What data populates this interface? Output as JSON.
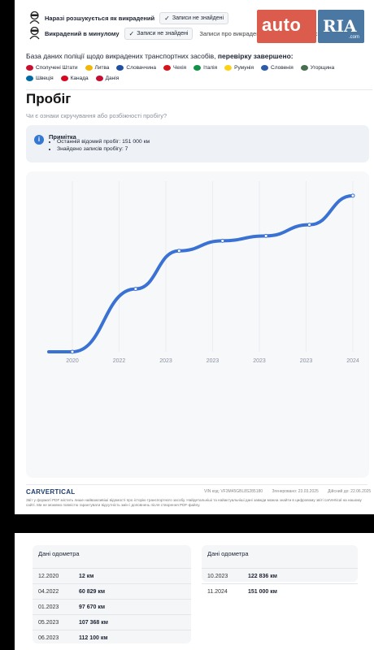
{
  "stolen": {
    "current": {
      "label": "Наразі розшукується як викрадений",
      "status": "Записи не знайдені"
    },
    "past": {
      "label": "Викрадений в минулому",
      "status": "Записи не знайдені",
      "extra": "Записи про викрадення транспортних засобів"
    }
  },
  "logo": {
    "auto": "auto",
    "ria": "RIA",
    "ria_com": ".com"
  },
  "database": {
    "title_prefix": "База даних поліції щодо викрадених транспортних засобів,",
    "title_bold": "перевірку завершено:",
    "countries": [
      {
        "name": "Сполучені Штати",
        "color": "#c8102e"
      },
      {
        "name": "Литва",
        "color": "#f2b705"
      },
      {
        "name": "Словаччина",
        "color": "#1e4fa0"
      },
      {
        "name": "Чехія",
        "color": "#d7141a"
      },
      {
        "name": "Італія",
        "color": "#119246"
      },
      {
        "name": "Румунія",
        "color": "#fcd116"
      },
      {
        "name": "Словенія",
        "color": "#2d5ba8"
      },
      {
        "name": "Угорщина",
        "color": "#477050"
      },
      {
        "name": "Швеція",
        "color": "#006aa7"
      },
      {
        "name": "Канада",
        "color": "#d80621"
      },
      {
        "name": "Данія",
        "color": "#c60c30"
      }
    ]
  },
  "mileage": {
    "title": "Пробіг",
    "subtitle": "Чи є ознаки скручування або розбіжності пробігу?",
    "note_title": "Примітка",
    "note_items": [
      "Останній відомий пробіг: 151 000 км",
      "Знайдено записів пробігу: 7"
    ]
  },
  "chart_data": {
    "type": "line",
    "x": [
      "2019",
      "2020",
      "2022",
      "2023",
      "2023",
      "2023",
      "2023",
      "2024"
    ],
    "x_tick_labels": [
      "2020",
      "2022",
      "2023",
      "2023",
      "2023",
      "2023",
      "2024"
    ],
    "values": [
      0,
      12,
      60829,
      97670,
      107368,
      112100,
      122836,
      151000
    ],
    "ylim": [
      0,
      165000
    ],
    "grid": true,
    "line_color": "#3a72d4"
  },
  "footer": {
    "brand_car": "CARVERTICAL",
    "vin": "VIN код: VF3M45GBL8S285180",
    "generated": "Згенеровано: 23.03.2025",
    "valid": "Дійсний до: 22.06.2025",
    "disclaimer": "Звіт у форматі PDF містить лише найважливіші відомості про історію транспортного засобу. Найдетальніші та найактуальніші дані завжди можна знайти в цифровому звіті carVertical на нашому сайті. Ми не можемо повністю гарантувати відсутність змін і доповнень після створення PDF-файлу."
  },
  "odometer": {
    "title": "Дані одометра",
    "left": [
      {
        "date": "12.2020",
        "value": "12 км"
      },
      {
        "date": "04.2022",
        "value": "60 829 км"
      },
      {
        "date": "01.2023",
        "value": "97 670 км"
      },
      {
        "date": "05.2023",
        "value": "107 368 км"
      },
      {
        "date": "06.2023",
        "value": "112 100 км"
      }
    ],
    "right": [
      {
        "date": "10.2023",
        "value": "122 836 км"
      },
      {
        "date": "11.2024",
        "value": "151 000 км"
      }
    ]
  }
}
